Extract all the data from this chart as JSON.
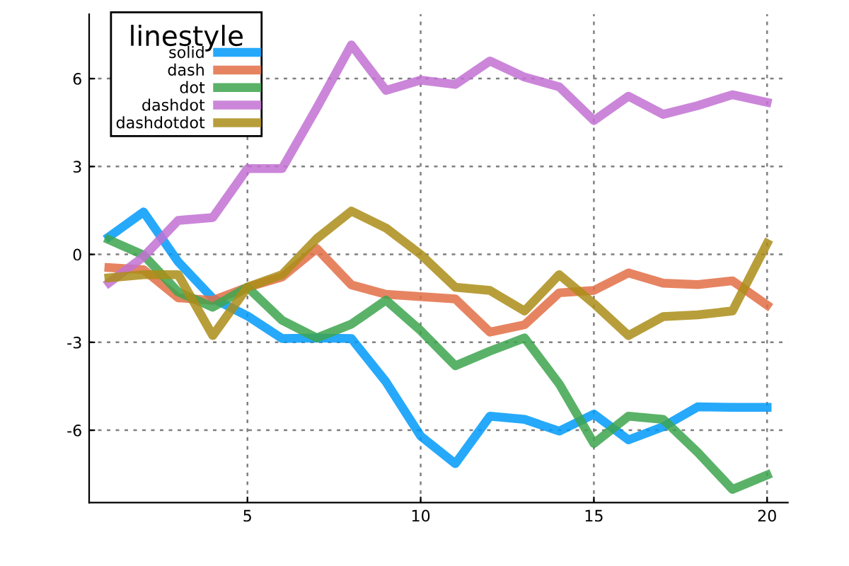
{
  "chart_data": {
    "type": "line",
    "legend_title": "linestyle",
    "x": [
      1,
      2,
      3,
      4,
      5,
      6,
      7,
      8,
      9,
      10,
      11,
      12,
      13,
      14,
      15,
      16,
      17,
      18,
      19,
      20
    ],
    "series": [
      {
        "name": "solid",
        "color": "#009af9",
        "values": [
          0.6,
          1.45,
          -0.25,
          -1.5,
          -2.1,
          -2.87,
          -2.85,
          -2.87,
          -4.35,
          -6.2,
          -7.14,
          -5.52,
          -5.63,
          -6.03,
          -5.45,
          -6.33,
          -5.88,
          -5.2,
          -5.22,
          -5.22
        ]
      },
      {
        "name": "dash",
        "color": "#e26f46",
        "values": [
          -0.45,
          -0.52,
          -1.48,
          -1.57,
          -1.12,
          -0.77,
          0.2,
          -1.04,
          -1.36,
          -1.44,
          -1.52,
          -2.65,
          -2.4,
          -1.31,
          -1.23,
          -0.63,
          -0.98,
          -1.03,
          -0.9,
          -1.73
        ]
      },
      {
        "name": "dot",
        "color": "#3da44d",
        "values": [
          0.5,
          -0.02,
          -1.28,
          -1.8,
          -1.12,
          -2.25,
          -2.85,
          -2.38,
          -1.56,
          -2.6,
          -3.8,
          -3.3,
          -2.85,
          -4.42,
          -6.45,
          -5.52,
          -5.63,
          -6.76,
          -8.02,
          -7.53
        ]
      },
      {
        "name": "dashdot",
        "color": "#c271d2",
        "values": [
          -0.97,
          -0.08,
          1.16,
          1.26,
          2.93,
          2.93,
          5.0,
          7.15,
          5.6,
          5.95,
          5.8,
          6.6,
          6.05,
          5.72,
          4.57,
          5.4,
          4.78,
          5.08,
          5.45,
          5.19
        ]
      },
      {
        "name": "dashdotdot",
        "color": "#ac8d18",
        "values": [
          -0.8,
          -0.69,
          -0.69,
          -2.77,
          -1.12,
          -0.69,
          0.54,
          1.48,
          0.9,
          0.0,
          -1.12,
          -1.23,
          -1.93,
          -0.69,
          -1.68,
          -2.77,
          -2.12,
          -2.06,
          -1.93,
          0.37
        ]
      }
    ],
    "xlim": [
      0.43,
      20.6
    ],
    "ylim": [
      -8.47,
      8.2
    ],
    "xticks": [
      5,
      10,
      15,
      20
    ],
    "yticks": [
      -6,
      -3,
      0,
      3,
      6
    ],
    "grid": true,
    "legend": "top left"
  }
}
